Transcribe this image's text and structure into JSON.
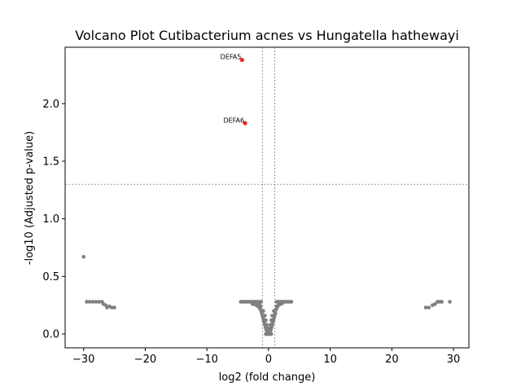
{
  "chart_data": {
    "type": "scatter",
    "title": "Volcano Plot Cutibacterium acnes vs Hungatella hathewayi",
    "xlabel": "log2 (fold change)",
    "ylabel": "-log10 (Adjusted p-value)",
    "xlim": [
      -33,
      32.5
    ],
    "ylim": [
      -0.12,
      2.49
    ],
    "xticks": [
      -30,
      -20,
      -10,
      0,
      10,
      20,
      30
    ],
    "yticks": [
      0.0,
      0.5,
      1.0,
      1.5,
      2.0
    ],
    "xtick_labels": [
      "−30",
      "−20",
      "−10",
      "0",
      "10",
      "20",
      "30"
    ],
    "ytick_labels": [
      "0.0",
      "0.5",
      "1.0",
      "1.5",
      "2.0"
    ],
    "grid": false,
    "legend": "none",
    "colors": {
      "significant": "#ee2222",
      "not_significant": "#808080",
      "threshold_line": "#808080"
    },
    "thresholds": {
      "log2fc": [
        -1,
        1
      ],
      "neg_log10_p": 1.3
    },
    "highlighted": [
      {
        "label": "DEFA5",
        "x": -4.3,
        "y": 2.38
      },
      {
        "label": "DEFA6",
        "x": -3.8,
        "y": 1.83
      }
    ],
    "points": [
      {
        "x": -30.0,
        "y": 0.67
      },
      {
        "x": 29.4,
        "y": 0.28
      },
      {
        "x": -29.5,
        "y": 0.28
      },
      {
        "x": -29.0,
        "y": 0.28
      },
      {
        "x": -28.5,
        "y": 0.28
      },
      {
        "x": -28.0,
        "y": 0.28
      },
      {
        "x": -27.5,
        "y": 0.28
      },
      {
        "x": -27.0,
        "y": 0.28
      },
      {
        "x": -26.8,
        "y": 0.26
      },
      {
        "x": -26.4,
        "y": 0.25
      },
      {
        "x": -26.2,
        "y": 0.23
      },
      {
        "x": -25.8,
        "y": 0.24
      },
      {
        "x": -25.4,
        "y": 0.23
      },
      {
        "x": -25.0,
        "y": 0.23
      },
      {
        "x": 25.5,
        "y": 0.23
      },
      {
        "x": 26.0,
        "y": 0.23
      },
      {
        "x": 26.6,
        "y": 0.25
      },
      {
        "x": 27.0,
        "y": 0.26
      },
      {
        "x": 27.4,
        "y": 0.28
      },
      {
        "x": 27.8,
        "y": 0.28
      },
      {
        "x": 28.1,
        "y": 0.28
      },
      {
        "x": -4.5,
        "y": 0.28
      },
      {
        "x": -4.2,
        "y": 0.28
      },
      {
        "x": -3.9,
        "y": 0.28
      },
      {
        "x": -3.6,
        "y": 0.28
      },
      {
        "x": -3.3,
        "y": 0.28
      },
      {
        "x": -3.0,
        "y": 0.28
      },
      {
        "x": -2.7,
        "y": 0.28
      },
      {
        "x": -2.4,
        "y": 0.28
      },
      {
        "x": -2.1,
        "y": 0.28
      },
      {
        "x": -1.8,
        "y": 0.28
      },
      {
        "x": -1.5,
        "y": 0.28
      },
      {
        "x": -1.2,
        "y": 0.28
      },
      {
        "x": -2.6,
        "y": 0.26
      },
      {
        "x": -2.3,
        "y": 0.26
      },
      {
        "x": -2.0,
        "y": 0.25
      },
      {
        "x": -1.7,
        "y": 0.24
      },
      {
        "x": -1.4,
        "y": 0.22
      },
      {
        "x": -1.2,
        "y": 0.2
      },
      {
        "x": -1.5,
        "y": 0.26
      },
      {
        "x": -1.1,
        "y": 0.18
      },
      {
        "x": -1.0,
        "y": 0.16
      },
      {
        "x": -0.9,
        "y": 0.14
      },
      {
        "x": -0.8,
        "y": 0.12
      },
      {
        "x": -0.7,
        "y": 0.1
      },
      {
        "x": -0.6,
        "y": 0.08
      },
      {
        "x": -0.5,
        "y": 0.06
      },
      {
        "x": -0.4,
        "y": 0.04
      },
      {
        "x": -0.3,
        "y": 0.03
      },
      {
        "x": -0.2,
        "y": 0.02
      },
      {
        "x": -0.1,
        "y": 0.01
      },
      {
        "x": 0.0,
        "y": 0.0
      },
      {
        "x": 0.1,
        "y": 0.01
      },
      {
        "x": 0.2,
        "y": 0.02
      },
      {
        "x": 0.3,
        "y": 0.03
      },
      {
        "x": 0.4,
        "y": 0.04
      },
      {
        "x": 0.5,
        "y": 0.06
      },
      {
        "x": 0.6,
        "y": 0.08
      },
      {
        "x": 0.7,
        "y": 0.1
      },
      {
        "x": 0.8,
        "y": 0.12
      },
      {
        "x": 0.9,
        "y": 0.14
      },
      {
        "x": 1.0,
        "y": 0.16
      },
      {
        "x": 1.1,
        "y": 0.18
      },
      {
        "x": 1.2,
        "y": 0.21
      },
      {
        "x": 1.4,
        "y": 0.23
      },
      {
        "x": 1.6,
        "y": 0.25
      },
      {
        "x": 1.8,
        "y": 0.26
      },
      {
        "x": 1.3,
        "y": 0.28
      },
      {
        "x": 1.6,
        "y": 0.28
      },
      {
        "x": 1.9,
        "y": 0.28
      },
      {
        "x": 2.2,
        "y": 0.28
      },
      {
        "x": 2.5,
        "y": 0.28
      },
      {
        "x": 2.8,
        "y": 0.28
      },
      {
        "x": 3.1,
        "y": 0.28
      },
      {
        "x": 3.4,
        "y": 0.28
      },
      {
        "x": 3.7,
        "y": 0.28
      },
      {
        "x": 2.0,
        "y": 0.26
      },
      {
        "x": 2.3,
        "y": 0.27
      },
      {
        "x": -0.85,
        "y": 0.2
      },
      {
        "x": -0.6,
        "y": 0.16
      },
      {
        "x": -0.45,
        "y": 0.12
      },
      {
        "x": -0.3,
        "y": 0.08
      },
      {
        "x": 0.3,
        "y": 0.08
      },
      {
        "x": 0.45,
        "y": 0.12
      },
      {
        "x": 0.6,
        "y": 0.16
      },
      {
        "x": 0.85,
        "y": 0.2
      },
      {
        "x": -1.3,
        "y": 0.24
      },
      {
        "x": 1.3,
        "y": 0.24
      },
      {
        "x": -0.2,
        "y": 0.05
      },
      {
        "x": 0.2,
        "y": 0.05
      },
      {
        "x": -0.05,
        "y": 0.02
      },
      {
        "x": 0.05,
        "y": 0.02
      },
      {
        "x": 0.0,
        "y": 0.04
      },
      {
        "x": -0.15,
        "y": 0.0
      },
      {
        "x": 0.15,
        "y": 0.0
      },
      {
        "x": -0.3,
        "y": 0.0
      },
      {
        "x": 0.3,
        "y": 0.0
      },
      {
        "x": -0.45,
        "y": 0.0
      },
      {
        "x": 0.45,
        "y": 0.0
      }
    ]
  }
}
